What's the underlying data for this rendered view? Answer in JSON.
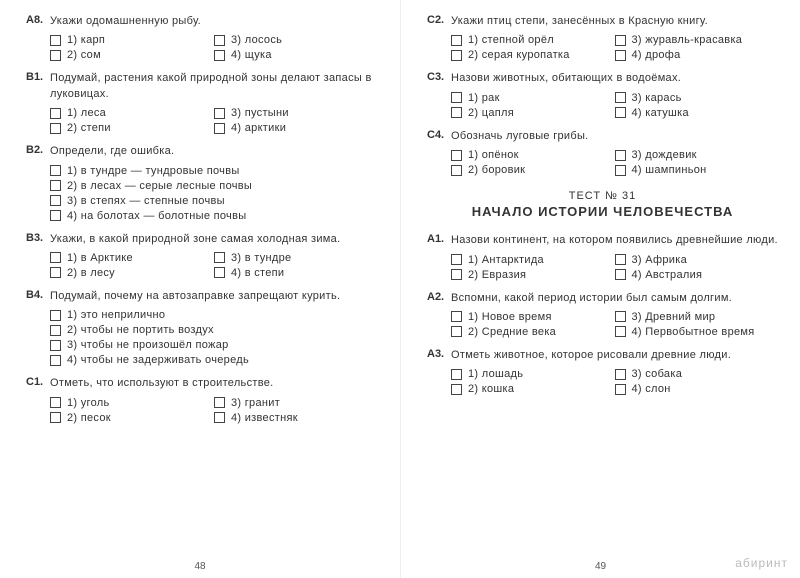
{
  "left": {
    "pagenum": "48",
    "questions": [
      {
        "label": "А8.",
        "text": "Укажи одомашненную рыбу.",
        "layout": "grid",
        "options": [
          "1) карп",
          "3) лосось",
          "2) сом",
          "4) щука"
        ]
      },
      {
        "label": "В1.",
        "text": "Подумай, растения какой природной зоны делают запасы в луковицах.",
        "layout": "grid",
        "options": [
          "1) леса",
          "3) пустыни",
          "2) степи",
          "4) арктики"
        ]
      },
      {
        "label": "В2.",
        "text": "Определи, где ошибка.",
        "layout": "list",
        "options": [
          "1) в тундре — тундровые почвы",
          "2) в лесах — серые лесные почвы",
          "3) в степях — степные почвы",
          "4) на болотах — болотные почвы"
        ]
      },
      {
        "label": "В3.",
        "text": "Укажи, в какой природной зоне самая холодная зима.",
        "layout": "grid",
        "options": [
          "1) в Арктике",
          "3) в тундре",
          "2) в лесу",
          "4) в степи"
        ]
      },
      {
        "label": "В4.",
        "text": "Подумай, почему на автозаправке запрещают курить.",
        "layout": "list",
        "options": [
          "1) это неприлично",
          "2) чтобы не портить воздух",
          "3) чтобы не произошёл пожар",
          "4) чтобы не задерживать очередь"
        ]
      },
      {
        "label": "С1.",
        "text": "Отметь, что используют в строительстве.",
        "layout": "grid",
        "options": [
          "1) уголь",
          "3) гранит",
          "2) песок",
          "4) известняк"
        ]
      }
    ]
  },
  "right": {
    "pagenum": "49",
    "topQuestions": [
      {
        "label": "С2.",
        "text": "Укажи птиц степи, занесённых в Красную книгу.",
        "layout": "grid",
        "options": [
          "1) степной орёл",
          "3) журавль-красавка",
          "2) серая куропатка",
          "4) дрофа"
        ]
      },
      {
        "label": "С3.",
        "text": "Назови животных, обитающих в водоёмах.",
        "layout": "grid",
        "options": [
          "1) рак",
          "3) карась",
          "2) цапля",
          "4) катушка"
        ]
      },
      {
        "label": "С4.",
        "text": "Обозначь луговые грибы.",
        "layout": "grid",
        "options": [
          "1) опёнок",
          "3) дождевик",
          "2) боровик",
          "4) шампиньон"
        ]
      }
    ],
    "header": {
      "no": "ТЕСТ № 31",
      "title": "НАЧАЛО ИСТОРИИ ЧЕЛОВЕЧЕСТВА"
    },
    "bottomQuestions": [
      {
        "label": "А1.",
        "text": "Назови континент, на котором появились древней­шие люди.",
        "layout": "grid",
        "options": [
          "1) Антарктида",
          "3) Африка",
          "2) Евразия",
          "4) Австралия"
        ]
      },
      {
        "label": "А2.",
        "text": "Вспомни, какой период истории был самым дол­гим.",
        "layout": "grid",
        "options": [
          "1) Новое время",
          "3) Древний мир",
          "2) Средние века",
          "4) Первобытное время"
        ]
      },
      {
        "label": "А3.",
        "text": "Отметь животное, которое рисовали древние люди.",
        "layout": "grid",
        "options": [
          "1) лошадь",
          "3) собака",
          "2) кошка",
          "4) слон"
        ]
      }
    ]
  },
  "watermark": "абиринт"
}
